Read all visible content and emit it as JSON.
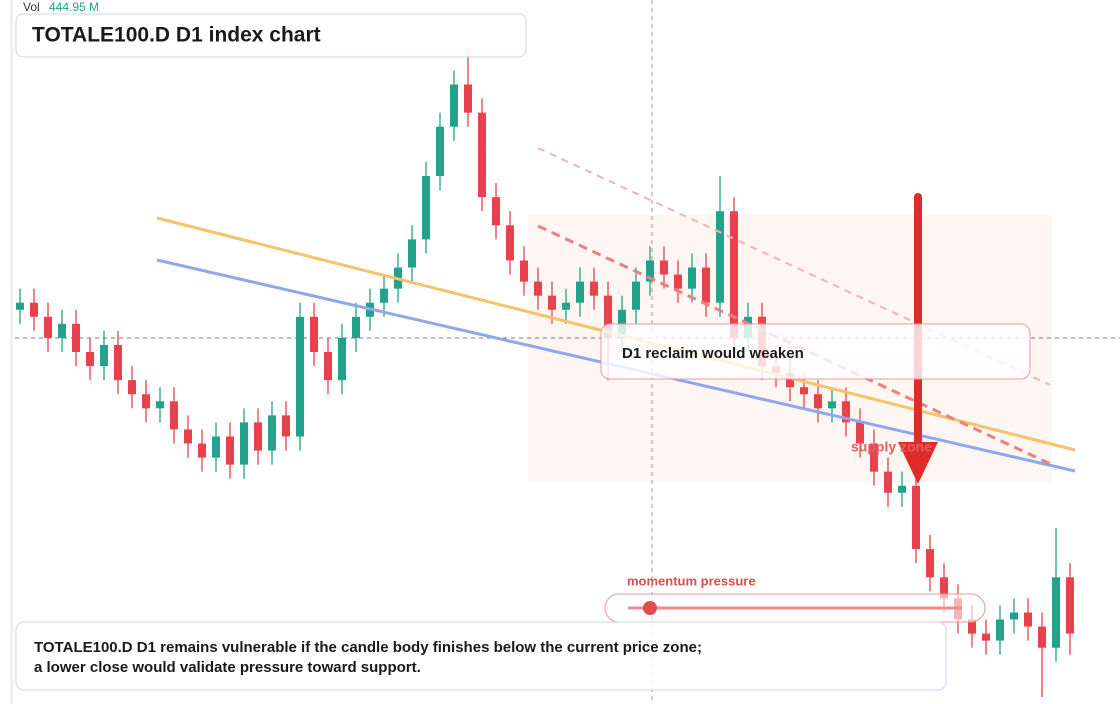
{
  "chart_data": {
    "type": "candlestick",
    "title": "TOTALE100.D D1 index chart",
    "volume_label": "Vol",
    "volume_value": "444.95 M",
    "up_color": "#22a28a",
    "down_color": "#e8424f",
    "ylim": [
      0,
      100
    ],
    "open": [
      56,
      57,
      55,
      52,
      54,
      50,
      48,
      51,
      46,
      44,
      42,
      43,
      39,
      37,
      35,
      38,
      34,
      40,
      36,
      41,
      38,
      55,
      50,
      46,
      52,
      55,
      57,
      59,
      62,
      66,
      75,
      82,
      88,
      84,
      72,
      68,
      63,
      60,
      58,
      56,
      57,
      60,
      58,
      52,
      56,
      60,
      63,
      61,
      59,
      62,
      57,
      70,
      52,
      55,
      48,
      47,
      45,
      44,
      42,
      43,
      40,
      37,
      33,
      30,
      31,
      22,
      18,
      15,
      12,
      10,
      9,
      12,
      13,
      11,
      8,
      18
    ],
    "high": [
      59,
      59,
      57,
      56,
      56,
      52,
      53,
      53,
      48,
      46,
      45,
      45,
      41,
      39,
      40,
      40,
      42,
      42,
      43,
      43,
      57,
      57,
      52,
      54,
      57,
      59,
      61,
      64,
      68,
      77,
      84,
      90,
      93,
      86,
      74,
      70,
      65,
      62,
      60,
      59,
      62,
      62,
      60,
      58,
      62,
      65,
      65,
      63,
      64,
      64,
      75,
      72,
      57,
      57,
      50,
      49,
      47,
      46,
      45,
      45,
      42,
      39,
      35,
      33,
      33,
      24,
      20,
      17,
      14,
      12,
      14,
      15,
      15,
      13,
      25,
      20
    ],
    "low": [
      54,
      53,
      50,
      50,
      48,
      46,
      46,
      44,
      42,
      40,
      40,
      37,
      35,
      33,
      33,
      32,
      32,
      34,
      34,
      36,
      36,
      48,
      44,
      44,
      50,
      53,
      55,
      57,
      60,
      64,
      73,
      80,
      82,
      70,
      66,
      61,
      58,
      56,
      54,
      54,
      55,
      56,
      46,
      50,
      54,
      58,
      59,
      57,
      57,
      55,
      55,
      50,
      50,
      46,
      45,
      43,
      42,
      40,
      40,
      38,
      35,
      31,
      28,
      28,
      20,
      16,
      13,
      10,
      8,
      7,
      7,
      10,
      9,
      1,
      6,
      7
    ],
    "close": [
      57,
      55,
      52,
      54,
      50,
      48,
      51,
      46,
      44,
      42,
      43,
      39,
      37,
      35,
      38,
      34,
      40,
      36,
      41,
      38,
      55,
      50,
      46,
      52,
      55,
      57,
      59,
      62,
      66,
      75,
      82,
      88,
      84,
      72,
      68,
      63,
      60,
      58,
      56,
      57,
      60,
      58,
      52,
      56,
      60,
      63,
      61,
      59,
      62,
      57,
      70,
      52,
      55,
      48,
      47,
      45,
      44,
      42,
      43,
      40,
      37,
      33,
      30,
      31,
      22,
      18,
      15,
      12,
      10,
      9,
      12,
      13,
      11,
      8,
      18,
      10
    ]
  },
  "annotations": {
    "reclaim": "D1 reclaim would weaken",
    "supply": "supply zone",
    "momentum": "momentum pressure",
    "summary": [
      "TOTALE100.D D1 remains vulnerable if the candle body finishes below the current price zone;",
      "a lower close would validate pressure toward support."
    ]
  }
}
